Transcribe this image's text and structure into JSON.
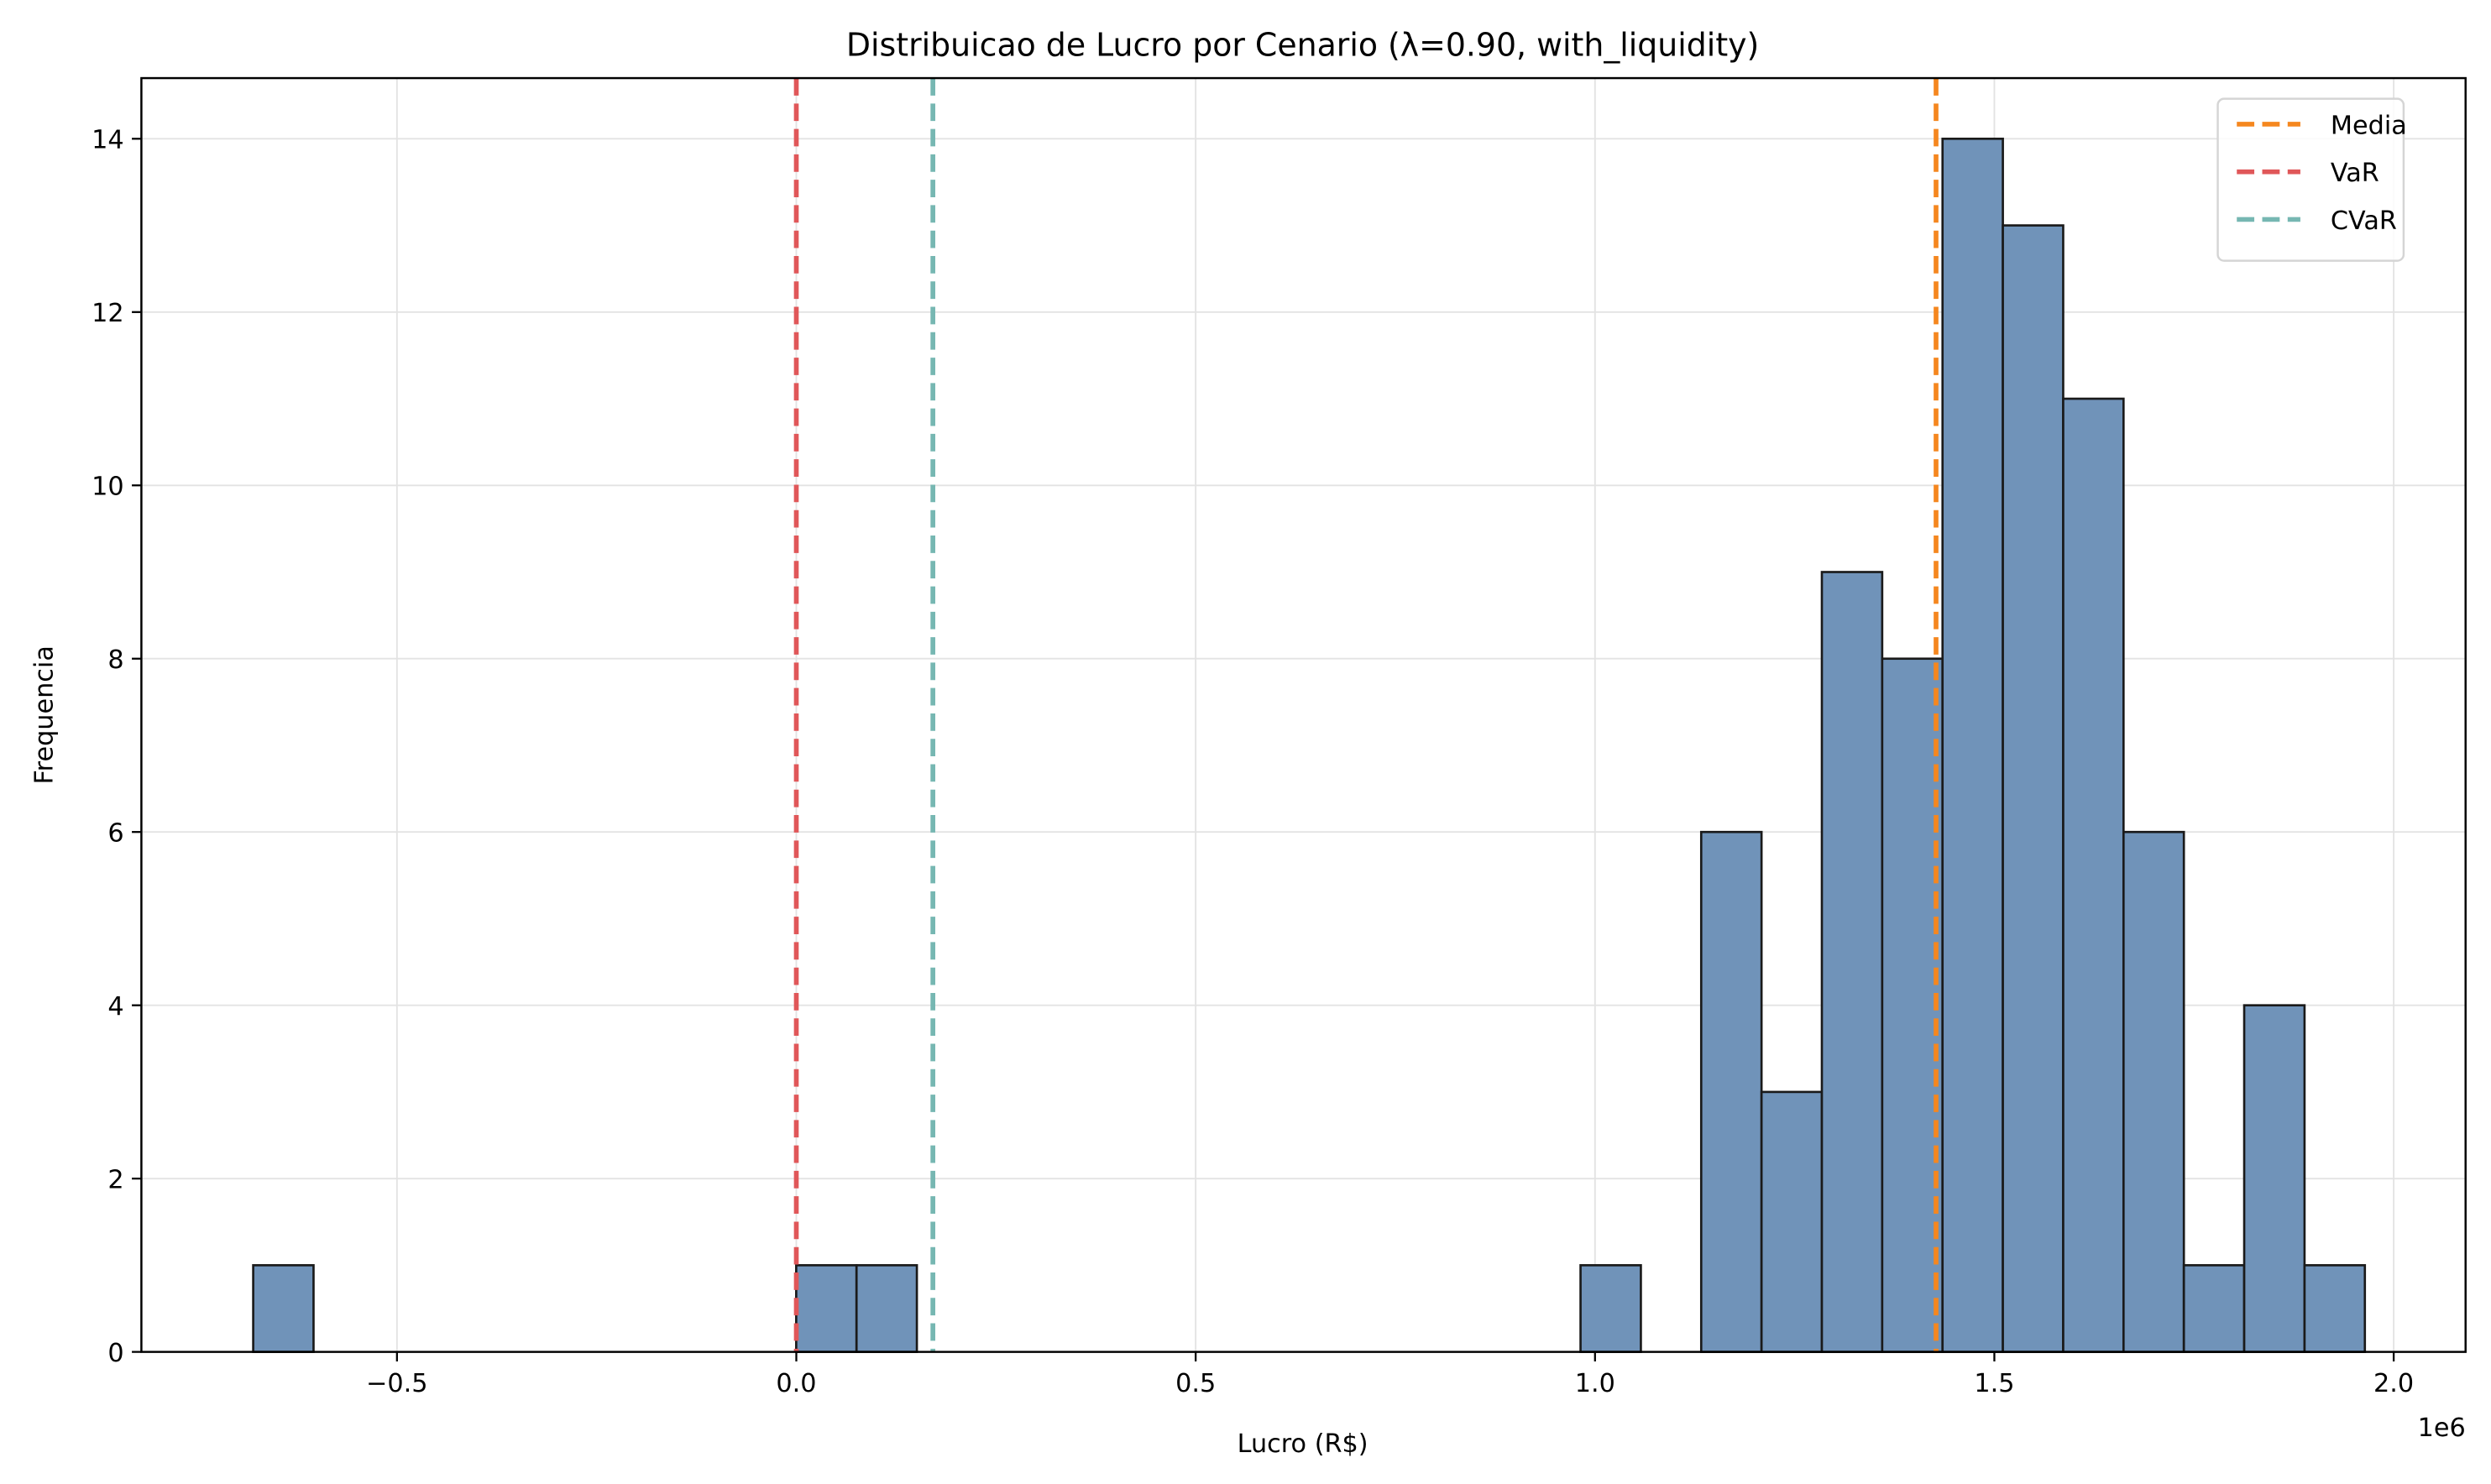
{
  "chart_data": {
    "type": "bar",
    "title": "Distribuicao de Lucro por Cenario (λ=0.90, with_liquidity)",
    "xlabel": "Lucro (R$)",
    "ylabel": "Frequencia",
    "x_offset_label": "1e6",
    "xlim": [
      -0.82,
      2.09
    ],
    "ylim": [
      0,
      14.7
    ],
    "x_ticks": [
      -0.5,
      0.0,
      0.5,
      1.0,
      1.5,
      2.0
    ],
    "x_tick_labels": [
      "−0.5",
      "0.0",
      "0.5",
      "1.0",
      "1.5",
      "2.0"
    ],
    "y_ticks": [
      0,
      2,
      4,
      6,
      8,
      10,
      12,
      14
    ],
    "y_tick_labels": [
      "0",
      "2",
      "4",
      "6",
      "8",
      "10",
      "12",
      "14"
    ],
    "grid": true,
    "bin_start": -0.68,
    "bin_width": 0.07554,
    "counts": [
      1,
      0,
      0,
      0,
      0,
      0,
      0,
      0,
      0,
      1,
      1,
      0,
      0,
      0,
      0,
      0,
      0,
      0,
      0,
      0,
      0,
      0,
      1,
      0,
      6,
      3,
      9,
      8,
      14,
      13,
      11,
      6,
      1,
      4,
      1
    ],
    "bar_color": "#7093b9",
    "bar_edge_color": "#1a1a1a",
    "vlines": [
      {
        "name": "Media",
        "x": 1.427,
        "color": "#f5871f"
      },
      {
        "name": "VaR",
        "x": 0.0,
        "color": "#e05759"
      },
      {
        "name": "CVaR",
        "x": 0.171,
        "color": "#76b7b2"
      }
    ],
    "legend_placement": "top-right"
  }
}
